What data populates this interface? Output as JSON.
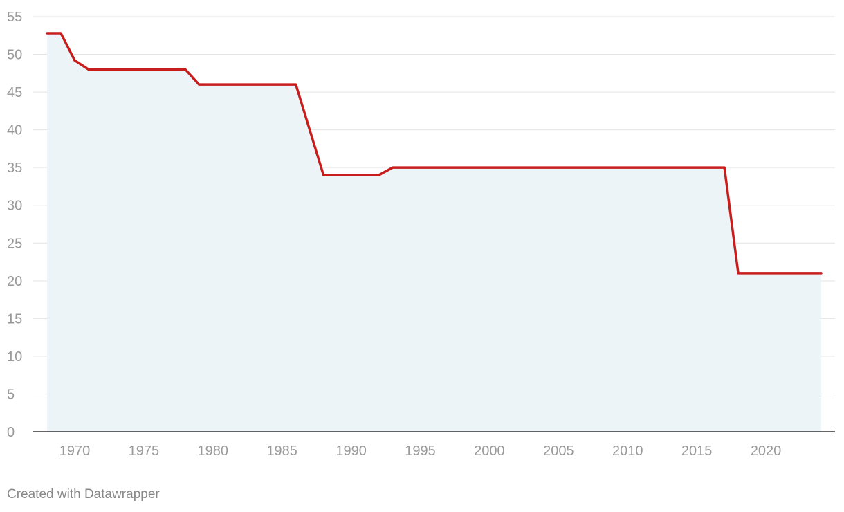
{
  "chart_data": {
    "type": "area",
    "title": "",
    "xlabel": "",
    "ylabel": "",
    "x": [
      1968,
      1969,
      1970,
      1971,
      1978,
      1979,
      1986,
      1988,
      1992,
      1993,
      2017,
      2018,
      2024
    ],
    "series": [
      {
        "values": [
          52.8,
          52.8,
          49.2,
          48,
          48,
          46,
          46,
          34,
          34,
          35,
          35,
          21,
          21
        ]
      }
    ],
    "xlim": [
      1968,
      2024
    ],
    "ylim": [
      0,
      55
    ],
    "x_ticks": [
      "1970",
      "1975",
      "1980",
      "1985",
      "1990",
      "1995",
      "2000",
      "2005",
      "2010",
      "2015",
      "2020"
    ],
    "y_ticks": [
      "0",
      "5",
      "10",
      "15",
      "20",
      "25",
      "30",
      "35",
      "40",
      "45",
      "50",
      "55"
    ],
    "grid": true,
    "line_color": "#c71e1d",
    "fill_color": "#edf4f7"
  },
  "footer": {
    "credit": "Created with Datawrapper"
  }
}
